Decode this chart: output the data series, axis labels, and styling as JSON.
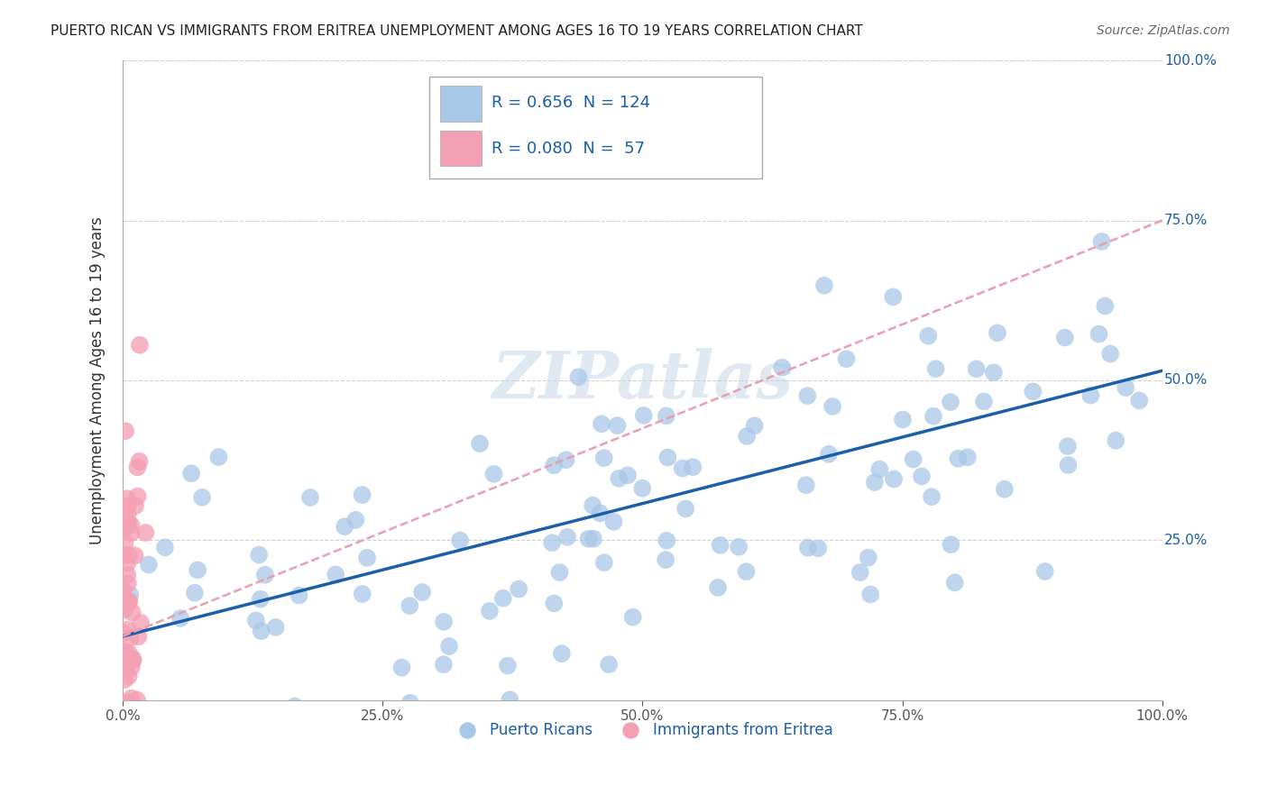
{
  "title": "PUERTO RICAN VS IMMIGRANTS FROM ERITREA UNEMPLOYMENT AMONG AGES 16 TO 19 YEARS CORRELATION CHART",
  "source": "Source: ZipAtlas.com",
  "ylabel": "Unemployment Among Ages 16 to 19 years",
  "xmin": 0.0,
  "xmax": 1.0,
  "ymin": 0.0,
  "ymax": 1.0,
  "xtick_labels": [
    "0.0%",
    "25.0%",
    "50.0%",
    "75.0%",
    "100.0%"
  ],
  "xtick_values": [
    0.0,
    0.25,
    0.5,
    0.75,
    1.0
  ],
  "ytick_labels": [
    "25.0%",
    "50.0%",
    "75.0%",
    "100.0%"
  ],
  "ytick_values": [
    0.25,
    0.5,
    0.75,
    1.0
  ],
  "blue_R": 0.656,
  "blue_N": 124,
  "pink_R": 0.08,
  "pink_N": 57,
  "watermark": "ZIPatlas",
  "blue_color": "#a8c8e8",
  "pink_color": "#f4a0b4",
  "blue_line_color": "#1a5fa8",
  "pink_line_color": "#e8a0b0",
  "background_color": "#ffffff",
  "grid_color": "#d0d0d0",
  "title_fontsize": 11,
  "source_fontsize": 10,
  "legend_text_color": "#1a5fa8",
  "blue_line_intercept": 0.1,
  "blue_line_slope": 0.415,
  "pink_line_intercept": 0.1,
  "pink_line_slope": 0.65
}
